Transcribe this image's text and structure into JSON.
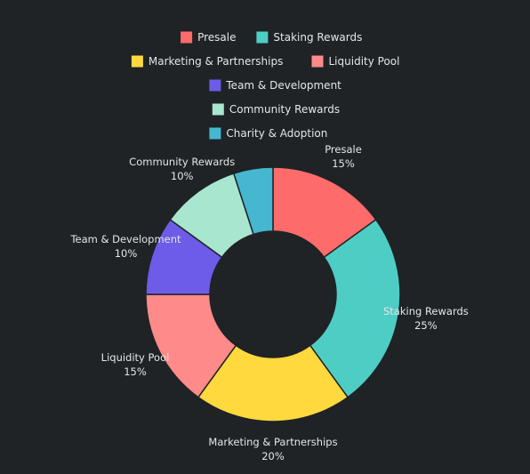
{
  "theme": {
    "background": "#1f2326",
    "text_color": "#e6e6e6"
  },
  "chart_data": {
    "type": "pie",
    "variant": "donut",
    "legend_placement": "top-center",
    "categories": [
      "Presale",
      "Staking Rewards",
      "Marketing & Partnerships",
      "Liquidity Pool",
      "Team & Development",
      "Community Rewards",
      "Charity & Adoption"
    ],
    "values": [
      15,
      25,
      20,
      15,
      10,
      10,
      5
    ],
    "value_labels": [
      "15%",
      "25%",
      "20%",
      "15%",
      "10%",
      "10%",
      ""
    ],
    "colors": [
      "#fe6b6b",
      "#4ecdc4",
      "#ffd93d",
      "#ff8a8a",
      "#6c5ce7",
      "#a8e6cf",
      "#45b7d1"
    ]
  }
}
